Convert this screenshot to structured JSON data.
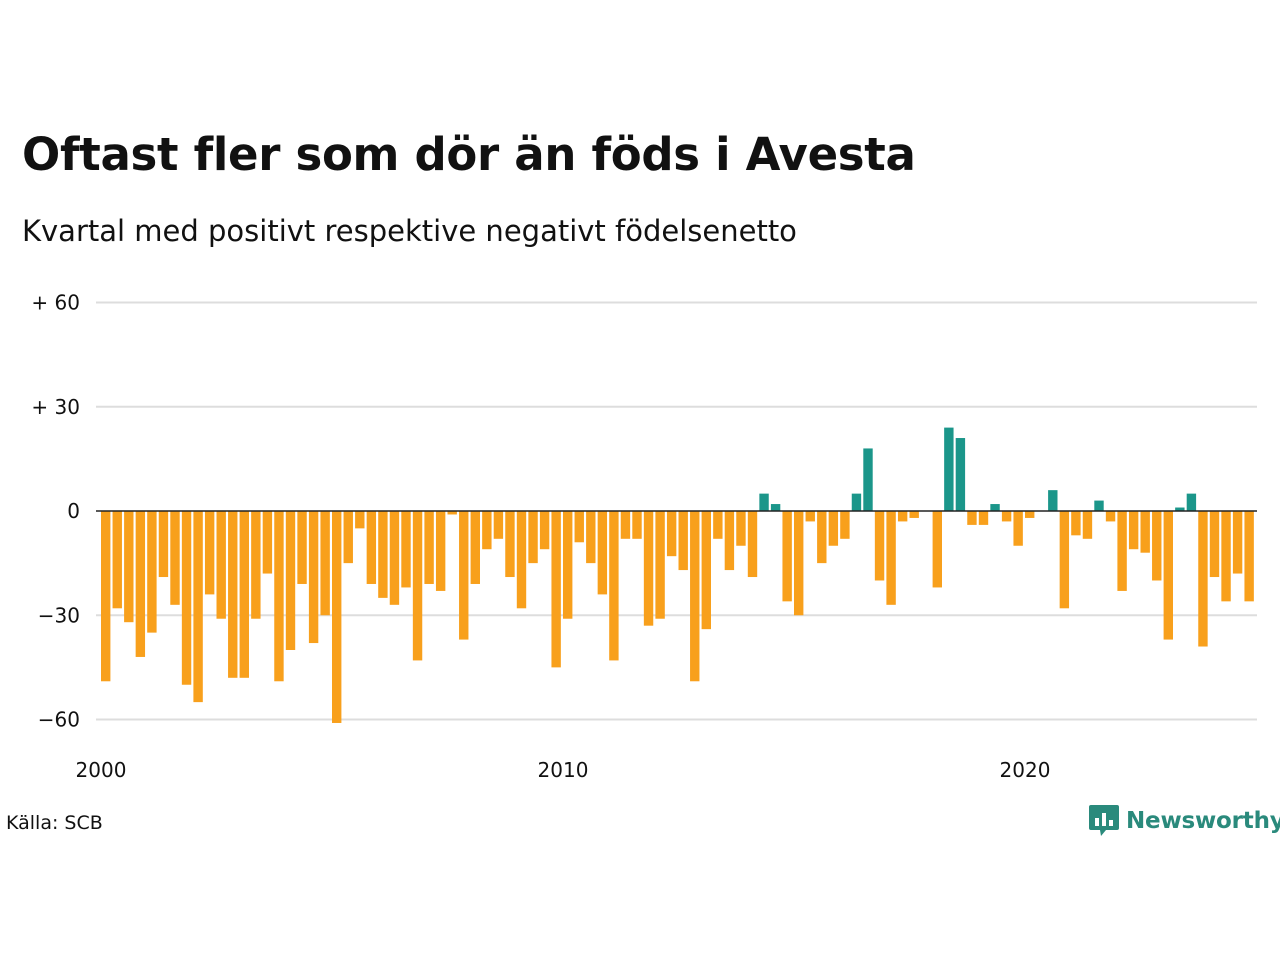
{
  "title": "Oftast fler som dör än föds i Avesta",
  "subtitle": "Kvartal med positivt respektive negativt födelsenetto",
  "source": "Källa: SCB",
  "logo": {
    "text": "Newsworthy",
    "icon": "newsworthy-chat-bars-icon"
  },
  "colors": {
    "positive": "#1b968a",
    "negative": "#f8a01c",
    "grid": "#dddddd",
    "zero_line": "#222222"
  },
  "chart_data": {
    "type": "bar",
    "ylim": [
      -66,
      60
    ],
    "grid": true,
    "y_ticks": [
      {
        "value": 60,
        "label": "+ 60"
      },
      {
        "value": 30,
        "label": "+ 30"
      },
      {
        "value": 0,
        "label": "0"
      },
      {
        "value": -30,
        "label": "−30"
      },
      {
        "value": -60,
        "label": "−60"
      }
    ],
    "x_ticks": [
      {
        "value": 2000,
        "label": "2000"
      },
      {
        "value": 2010,
        "label": "2010"
      },
      {
        "value": 2020,
        "label": "2020"
      }
    ],
    "x_start": 2000,
    "period": "quarter",
    "values": [
      -49,
      -28,
      -32,
      -42,
      -35,
      -19,
      -27,
      -50,
      -55,
      -24,
      -31,
      -48,
      -48,
      -31,
      -18,
      -49,
      -40,
      -21,
      -38,
      -30,
      -61,
      -15,
      -5,
      -21,
      -25,
      -27,
      -22,
      -43,
      -21,
      -23,
      -1,
      -37,
      -21,
      -11,
      -8,
      -19,
      -28,
      -15,
      -11,
      -45,
      -31,
      -9,
      -15,
      -24,
      -43,
      -8,
      -8,
      -33,
      -31,
      -13,
      -17,
      -49,
      -34,
      -8,
      -17,
      -10,
      -19,
      5,
      2,
      -26,
      -30,
      -3,
      -15,
      -10,
      -8,
      5,
      18,
      -20,
      -27,
      -3,
      -2,
      0,
      -22,
      24,
      21,
      -4,
      -4,
      2,
      -3,
      -10,
      -2,
      0,
      6,
      -28,
      -7,
      -8,
      3,
      -3,
      -23,
      -11,
      -12,
      -20,
      -37,
      1,
      5,
      -39,
      -19,
      -26,
      -18,
      -26
    ]
  }
}
